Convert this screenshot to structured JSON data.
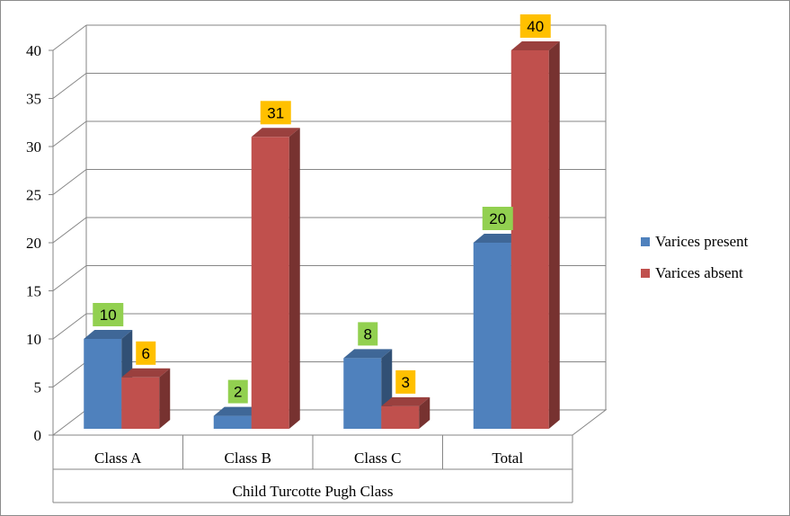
{
  "chart_data": {
    "type": "bar",
    "style": "3d-clustered-column",
    "categories": [
      "Class A",
      "Class B",
      "Class C",
      "Total"
    ],
    "series": [
      {
        "name": "Varices present",
        "values": [
          10,
          2,
          8,
          20
        ],
        "color": "#4f81bd",
        "label_bg": "#92d050"
      },
      {
        "name": "Varices absent",
        "values": [
          6,
          31,
          3,
          40
        ],
        "color": "#c0504d",
        "label_bg": "#ffc000"
      }
    ],
    "xlabel": "Child Turcotte Pugh Class",
    "ylabel": "",
    "ylim": [
      0,
      40
    ],
    "yticks": [
      0,
      5,
      10,
      15,
      20,
      25,
      30,
      35,
      40
    ],
    "grid": true,
    "legend": "right"
  }
}
